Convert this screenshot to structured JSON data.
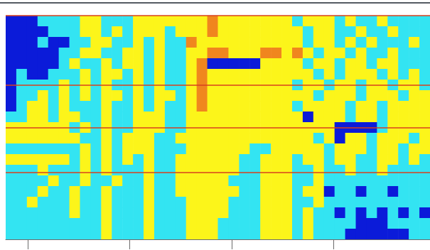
{
  "chart_data": {
    "type": "heatmap",
    "xlim": [
      0.78,
      4.95
    ],
    "xticks": [
      1,
      2,
      3,
      4
    ],
    "ylim": [
      0,
      1
    ],
    "tick_labels": false,
    "grid": false,
    "colors": [
      "#0b1bd9",
      "#33e4f2",
      "#fcf51a",
      "#f0861e"
    ],
    "hlines": [
      0.3,
      0.5,
      0.69,
      1.0
    ],
    "cells": [
      [
        0,
        0,
        0,
        1,
        1,
        1,
        1,
        2,
        2,
        1,
        1,
        1,
        2,
        2,
        2,
        2,
        2,
        2,
        2,
        3,
        2,
        2,
        2,
        2,
        2,
        2,
        2,
        1,
        2,
        2,
        2,
        1,
        2,
        1,
        1,
        2,
        1,
        1,
        1,
        1
      ],
      [
        0,
        0,
        0,
        0,
        1,
        1,
        1,
        2,
        2,
        1,
        2,
        1,
        2,
        2,
        2,
        1,
        2,
        2,
        2,
        3,
        2,
        2,
        2,
        2,
        2,
        2,
        2,
        2,
        1,
        2,
        2,
        1,
        1,
        2,
        1,
        1,
        2,
        1,
        1,
        1
      ],
      [
        0,
        0,
        0,
        1,
        0,
        0,
        1,
        1,
        2,
        2,
        1,
        1,
        2,
        1,
        2,
        1,
        1,
        3,
        2,
        2,
        2,
        2,
        2,
        2,
        2,
        2,
        2,
        2,
        1,
        2,
        2,
        1,
        2,
        1,
        2,
        1,
        1,
        1,
        2,
        1
      ],
      [
        0,
        0,
        0,
        0,
        0,
        1,
        1,
        2,
        2,
        1,
        1,
        2,
        2,
        1,
        2,
        1,
        1,
        2,
        2,
        3,
        3,
        2,
        2,
        2,
        3,
        3,
        2,
        3,
        2,
        1,
        2,
        2,
        1,
        2,
        1,
        1,
        2,
        1,
        1,
        1
      ],
      [
        0,
        0,
        0,
        0,
        0,
        1,
        2,
        1,
        1,
        2,
        1,
        2,
        2,
        1,
        2,
        1,
        1,
        2,
        3,
        0,
        0,
        0,
        0,
        0,
        2,
        2,
        2,
        2,
        1,
        2,
        2,
        1,
        2,
        2,
        1,
        2,
        2,
        1,
        1,
        1
      ],
      [
        0,
        1,
        0,
        0,
        1,
        1,
        1,
        2,
        1,
        2,
        2,
        1,
        2,
        1,
        2,
        1,
        1,
        2,
        3,
        2,
        2,
        2,
        2,
        2,
        2,
        2,
        2,
        2,
        2,
        1,
        2,
        1,
        2,
        2,
        2,
        1,
        2,
        1,
        2,
        1
      ],
      [
        0,
        1,
        1,
        1,
        1,
        2,
        1,
        2,
        1,
        2,
        1,
        1,
        2,
        1,
        2,
        1,
        1,
        2,
        3,
        2,
        2,
        2,
        2,
        2,
        2,
        2,
        2,
        1,
        2,
        2,
        1,
        2,
        2,
        1,
        2,
        2,
        1,
        2,
        2,
        1
      ],
      [
        0,
        1,
        1,
        2,
        1,
        2,
        1,
        2,
        1,
        2,
        2,
        1,
        2,
        1,
        2,
        2,
        1,
        2,
        3,
        2,
        2,
        2,
        2,
        2,
        2,
        2,
        2,
        2,
        2,
        1,
        2,
        2,
        2,
        1,
        2,
        2,
        2,
        1,
        2,
        2
      ],
      [
        0,
        1,
        2,
        2,
        1,
        2,
        1,
        1,
        1,
        2,
        1,
        1,
        2,
        1,
        2,
        1,
        1,
        2,
        3,
        2,
        2,
        2,
        2,
        2,
        2,
        2,
        2,
        1,
        2,
        2,
        2,
        2,
        1,
        2,
        2,
        1,
        2,
        2,
        2,
        2
      ],
      [
        1,
        1,
        2,
        2,
        1,
        2,
        2,
        1,
        1,
        2,
        1,
        1,
        2,
        2,
        2,
        1,
        1,
        2,
        2,
        2,
        2,
        2,
        2,
        2,
        2,
        2,
        2,
        2,
        0,
        2,
        2,
        2,
        1,
        2,
        2,
        1,
        2,
        2,
        2,
        2
      ],
      [
        2,
        2,
        2,
        2,
        2,
        2,
        1,
        2,
        1,
        2,
        1,
        1,
        2,
        2,
        2,
        1,
        1,
        2,
        2,
        2,
        2,
        2,
        2,
        2,
        2,
        2,
        2,
        2,
        2,
        2,
        2,
        0,
        0,
        0,
        0,
        1,
        2,
        2,
        2,
        2
      ],
      [
        2,
        2,
        2,
        2,
        2,
        2,
        2,
        1,
        1,
        2,
        1,
        2,
        2,
        2,
        1,
        1,
        2,
        2,
        2,
        2,
        2,
        2,
        2,
        2,
        2,
        2,
        2,
        2,
        2,
        1,
        2,
        0,
        2,
        2,
        1,
        2,
        2,
        2,
        1,
        2
      ],
      [
        1,
        1,
        1,
        1,
        1,
        1,
        1,
        2,
        1,
        2,
        1,
        2,
        2,
        2,
        1,
        1,
        1,
        2,
        2,
        2,
        2,
        2,
        2,
        1,
        1,
        2,
        2,
        2,
        2,
        2,
        1,
        2,
        2,
        2,
        1,
        2,
        2,
        1,
        2,
        2
      ],
      [
        2,
        2,
        2,
        2,
        2,
        2,
        1,
        2,
        1,
        2,
        1,
        2,
        1,
        2,
        1,
        1,
        2,
        2,
        2,
        2,
        2,
        2,
        1,
        1,
        2,
        2,
        2,
        1,
        2,
        2,
        1,
        2,
        2,
        1,
        1,
        2,
        2,
        1,
        2,
        1
      ],
      [
        1,
        1,
        1,
        2,
        1,
        1,
        1,
        2,
        1,
        2,
        1,
        1,
        1,
        2,
        1,
        1,
        2,
        2,
        2,
        2,
        2,
        2,
        1,
        1,
        2,
        2,
        2,
        1,
        1,
        2,
        1,
        1,
        2,
        1,
        1,
        2,
        1,
        1,
        1,
        1
      ],
      [
        1,
        1,
        1,
        1,
        2,
        1,
        1,
        2,
        1,
        1,
        2,
        1,
        1,
        2,
        1,
        1,
        2,
        2,
        2,
        2,
        2,
        1,
        1,
        1,
        2,
        2,
        2,
        1,
        1,
        2,
        1,
        1,
        1,
        1,
        1,
        1,
        1,
        1,
        1,
        1
      ],
      [
        1,
        1,
        1,
        2,
        1,
        1,
        2,
        1,
        1,
        2,
        1,
        1,
        1,
        2,
        1,
        1,
        2,
        2,
        2,
        2,
        2,
        2,
        1,
        1,
        2,
        2,
        2,
        1,
        2,
        2,
        0,
        1,
        1,
        0,
        1,
        1,
        0,
        1,
        1,
        1
      ],
      [
        1,
        1,
        2,
        1,
        1,
        1,
        2,
        1,
        1,
        2,
        1,
        1,
        1,
        2,
        1,
        1,
        1,
        2,
        2,
        2,
        2,
        1,
        1,
        1,
        2,
        2,
        2,
        1,
        1,
        2,
        1,
        1,
        1,
        1,
        1,
        1,
        1,
        1,
        1,
        1
      ],
      [
        1,
        1,
        1,
        1,
        1,
        1,
        2,
        1,
        1,
        2,
        1,
        1,
        1,
        2,
        1,
        1,
        1,
        2,
        2,
        2,
        2,
        1,
        1,
        1,
        2,
        2,
        2,
        1,
        2,
        1,
        1,
        0,
        1,
        0,
        1,
        0,
        1,
        0,
        1,
        0
      ],
      [
        1,
        1,
        1,
        1,
        1,
        1,
        1,
        1,
        1,
        2,
        1,
        1,
        1,
        2,
        1,
        1,
        1,
        2,
        2,
        2,
        1,
        1,
        1,
        1,
        2,
        2,
        2,
        1,
        2,
        1,
        1,
        1,
        1,
        0,
        0,
        0,
        1,
        1,
        1,
        1
      ],
      [
        1,
        1,
        1,
        1,
        1,
        1,
        1,
        1,
        1,
        2,
        1,
        1,
        1,
        2,
        1,
        1,
        1,
        2,
        2,
        2,
        1,
        1,
        1,
        1,
        2,
        2,
        2,
        1,
        2,
        1,
        1,
        1,
        0,
        0,
        0,
        0,
        0,
        0,
        1,
        1
      ]
    ]
  }
}
